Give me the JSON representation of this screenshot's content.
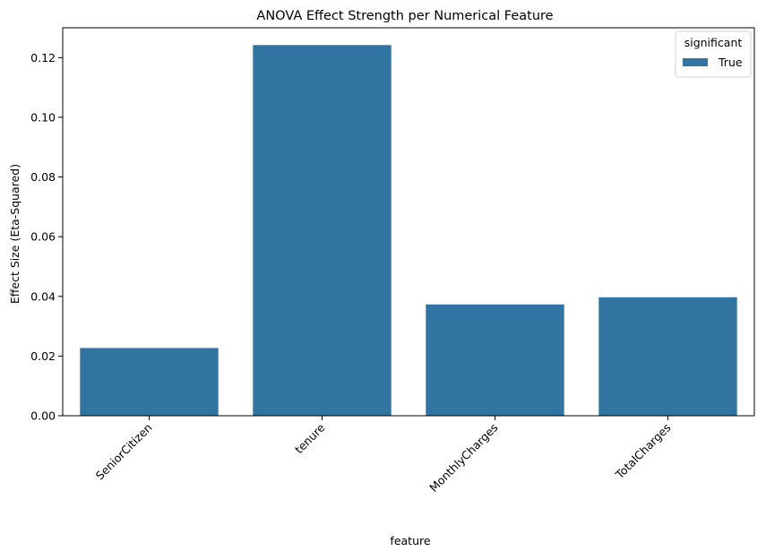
{
  "chart_data": {
    "type": "bar",
    "title": "ANOVA Effect Strength per Numerical Feature",
    "xlabel": "feature",
    "ylabel": "Effect Size (Eta-Squared)",
    "categories": [
      "SeniorCitizen",
      "tenure",
      "MonthlyCharges",
      "TotalCharges"
    ],
    "series": [
      {
        "name": "True",
        "values": [
          0.0227,
          0.1242,
          0.0373,
          0.0397
        ],
        "color": "#3274a1"
      }
    ],
    "ylim": [
      0,
      0.13
    ],
    "yticks": [
      0.0,
      0.02,
      0.04,
      0.06,
      0.08,
      0.1,
      0.12
    ],
    "ytick_labels": [
      "0.00",
      "0.02",
      "0.04",
      "0.06",
      "0.08",
      "0.10",
      "0.12"
    ],
    "legend": {
      "title": "significant",
      "placement": "top-right"
    },
    "grid": false,
    "xtick_rotation_deg": 45
  }
}
